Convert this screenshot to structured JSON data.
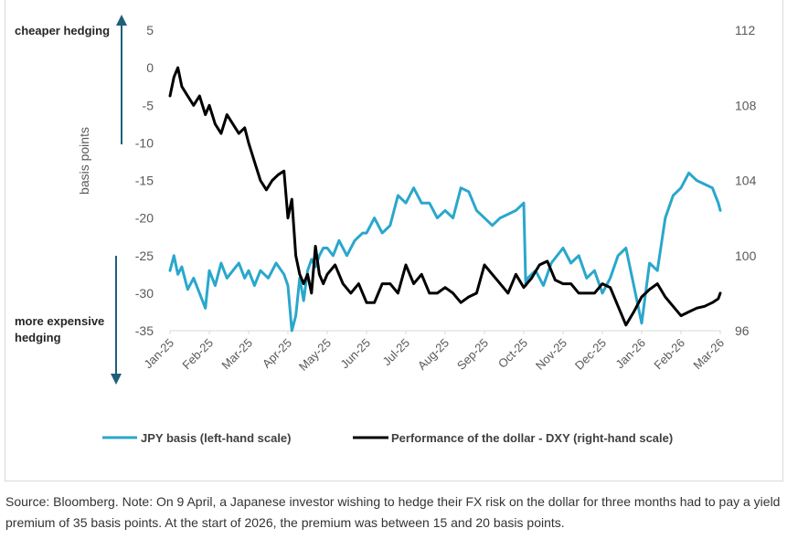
{
  "colors": {
    "jpy": "#2aa7cc",
    "dxy": "#000000",
    "arrow": "#1f5f7a",
    "axis_text": "#595959"
  },
  "annotations": {
    "top": "cheaper hedging",
    "bottom_line1": "more expensive",
    "bottom_line2": "hedging"
  },
  "caption": "Source: Bloomberg. Note: On 9 April, a Japanese investor wishing to hedge their FX risk on the dollar for three months had to pay a yield premium of 35 basis points. At the start of 2026, the premium was between 15 and 20 basis points.",
  "chart_data": {
    "type": "line",
    "ylabel": "basis points",
    "xlabel": "",
    "x_tick_labels": [
      "Jan-25",
      "Feb-25",
      "Mar-25",
      "Apr-25",
      "May-25",
      "Jun-25",
      "Jul-25",
      "Aug-25",
      "Sep-25",
      "Oct-25",
      "Nov-25",
      "Dec-25",
      "Jan-26",
      "Feb-26",
      "Mar-26"
    ],
    "y_left": {
      "ticks": [
        5,
        0,
        -5,
        -10,
        -15,
        -20,
        -25,
        -30,
        -35
      ],
      "range": [
        -35,
        5
      ]
    },
    "y_right": {
      "ticks": [
        112,
        108,
        104,
        100,
        96
      ],
      "range": [
        96,
        112
      ]
    },
    "legend": {
      "placement": "bottom"
    },
    "grid": false,
    "series": [
      {
        "name": "JPY basis (left-hand scale)",
        "axis": "left",
        "color": "#2aa7cc",
        "x_month_index": [
          0,
          0.1,
          0.2,
          0.3,
          0.45,
          0.6,
          0.75,
          0.9,
          1.0,
          1.15,
          1.3,
          1.45,
          1.6,
          1.75,
          1.9,
          2.0,
          2.15,
          2.3,
          2.5,
          2.7,
          2.9,
          3.0,
          3.1,
          3.2,
          3.3,
          3.4,
          3.5,
          3.6,
          3.7,
          3.8,
          3.9,
          4.0,
          4.15,
          4.3,
          4.5,
          4.7,
          4.9,
          5.0,
          5.2,
          5.4,
          5.6,
          5.8,
          6.0,
          6.2,
          6.4,
          6.6,
          6.8,
          7.0,
          7.2,
          7.4,
          7.6,
          7.8,
          8.0,
          8.2,
          8.4,
          8.6,
          8.8,
          9.0,
          9.05,
          9.1,
          9.3,
          9.5,
          9.7,
          10.0,
          10.2,
          10.4,
          10.6,
          10.8,
          11.0,
          11.2,
          11.4,
          11.6,
          11.8,
          12.0,
          12.2,
          12.4,
          12.6,
          12.8,
          13.0,
          13.2,
          13.4,
          13.6,
          13.8,
          13.95,
          14.0
        ],
        "values": [
          -27,
          -25,
          -27.5,
          -26.5,
          -29.5,
          -28,
          -30,
          -32,
          -27,
          -29,
          -26,
          -28,
          -27,
          -26,
          -28,
          -27,
          -29,
          -27,
          -28,
          -26,
          -27.5,
          -29,
          -35,
          -33,
          -28,
          -31,
          -27,
          -25.5,
          -26.5,
          -25,
          -24,
          -24,
          -25,
          -23,
          -25,
          -23,
          -22,
          -22,
          -20,
          -22,
          -21,
          -17,
          -18,
          -16,
          -18,
          -18,
          -20,
          -19,
          -20,
          -16,
          -16.5,
          -19,
          -20,
          -21,
          -20,
          -19.5,
          -19,
          -18,
          -29,
          -28,
          -27,
          -29,
          -26,
          -24,
          -26,
          -25,
          -28,
          -27,
          -30,
          -28,
          -25,
          -24,
          -29,
          -34,
          -26,
          -27,
          -20,
          -17,
          -16,
          -14,
          -15,
          -15.5,
          -16,
          -18,
          -19
        ]
      },
      {
        "name": "Performance of the dollar - DXY (right-hand scale)",
        "axis": "right",
        "color": "#000000",
        "x_month_index": [
          0,
          0.1,
          0.2,
          0.3,
          0.45,
          0.6,
          0.75,
          0.9,
          1.0,
          1.15,
          1.3,
          1.45,
          1.6,
          1.75,
          1.9,
          2.0,
          2.15,
          2.3,
          2.45,
          2.6,
          2.75,
          2.9,
          3.0,
          3.1,
          3.2,
          3.3,
          3.4,
          3.5,
          3.6,
          3.7,
          3.8,
          3.9,
          4.0,
          4.2,
          4.4,
          4.6,
          4.8,
          5.0,
          5.2,
          5.4,
          5.6,
          5.8,
          6.0,
          6.2,
          6.4,
          6.6,
          6.8,
          7.0,
          7.2,
          7.4,
          7.6,
          7.8,
          8.0,
          8.2,
          8.4,
          8.6,
          8.8,
          9.0,
          9.2,
          9.4,
          9.6,
          9.8,
          10.0,
          10.2,
          10.4,
          10.6,
          10.8,
          11.0,
          11.2,
          11.4,
          11.6,
          11.8,
          12.0,
          12.2,
          12.4,
          12.6,
          12.8,
          13.0,
          13.2,
          13.4,
          13.6,
          13.8,
          13.95,
          14.0
        ],
        "values": [
          108.5,
          109.5,
          110,
          109,
          108.5,
          108,
          108.5,
          107.5,
          108,
          107,
          106.5,
          107.5,
          107,
          106.5,
          106.8,
          106,
          105,
          104,
          103.5,
          104,
          104.3,
          104.5,
          102,
          103,
          100,
          99,
          98.5,
          99,
          98,
          100.5,
          99,
          98.5,
          99,
          99.5,
          98.5,
          98,
          98.5,
          97.5,
          97.5,
          98.5,
          98.5,
          98,
          99.5,
          98.5,
          99,
          98,
          98,
          98.3,
          98,
          97.5,
          97.8,
          98,
          99.5,
          99,
          98.5,
          98,
          99,
          98.3,
          98.8,
          99.5,
          99.7,
          98.7,
          98.5,
          98.5,
          98,
          98,
          98,
          98.5,
          98.3,
          97.3,
          96.3,
          97,
          97.8,
          98.2,
          98.5,
          97.8,
          97.3,
          96.8,
          97,
          97.2,
          97.3,
          97.5,
          97.7,
          98
        ]
      }
    ]
  }
}
